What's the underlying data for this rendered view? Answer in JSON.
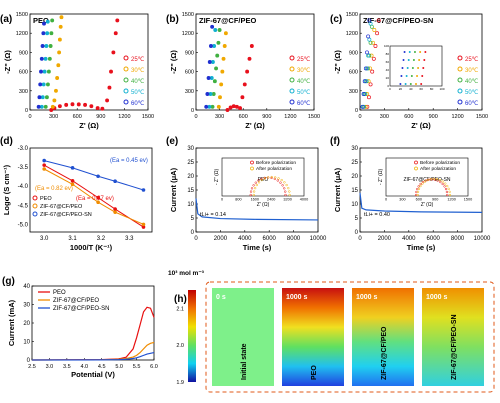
{
  "palette": {
    "c25": "#e8101c",
    "c30": "#f0a800",
    "c40": "#40b040",
    "c50": "#10b0d0",
    "c60": "#2030d0",
    "peo": "#e81010",
    "cf": "#f08c00",
    "sn": "#2050d0",
    "before": "#e81010",
    "after": "#f0b000"
  },
  "chart_data": [
    {
      "panel": "(a)",
      "type": "scatter",
      "title": "PEO",
      "xlabel": "Z' (Ω)",
      "ylabel": "-Z\" (Ω)",
      "xlim": [
        0,
        1500
      ],
      "ylim": [
        0,
        1500
      ],
      "xticks": [
        "0",
        "300",
        "600",
        "900",
        "1200",
        "1500"
      ],
      "yticks": [
        "0",
        "300",
        "600",
        "900",
        "1200",
        "1500"
      ],
      "series": [
        {
          "name": "25℃",
          "color_key": "c25",
          "x": [
            270,
            310,
            380,
            460,
            540,
            620,
            700,
            780,
            860,
            920,
            980,
            1010,
            1030,
            1060,
            1090,
            1110
          ],
          "y": [
            0,
            30,
            60,
            80,
            90,
            88,
            80,
            60,
            30,
            20,
            150,
            350,
            600,
            900,
            1200,
            1400
          ]
        },
        {
          "name": "30℃",
          "color_key": "c30",
          "x": [
            290,
            310,
            330,
            345,
            360,
            370,
            380,
            390,
            400
          ],
          "y": [
            50,
            150,
            300,
            500,
            700,
            900,
            1100,
            1300,
            1450
          ]
        },
        {
          "name": "40℃",
          "color_key": "c40",
          "x": [
            200,
            215,
            228,
            240,
            252,
            262,
            272,
            282
          ],
          "y": [
            50,
            200,
            400,
            600,
            800,
            1000,
            1200,
            1400
          ]
        },
        {
          "name": "50℃",
          "color_key": "c50",
          "x": [
            150,
            162,
            174,
            186,
            198,
            208,
            218,
            226
          ],
          "y": [
            50,
            200,
            400,
            600,
            800,
            1000,
            1200,
            1380
          ]
        },
        {
          "name": "60℃",
          "color_key": "c60",
          "x": [
            110,
            120,
            130,
            140,
            150,
            160,
            170,
            178
          ],
          "y": [
            50,
            200,
            400,
            600,
            800,
            1000,
            1200,
            1350
          ]
        }
      ]
    },
    {
      "panel": "(b)",
      "type": "scatter",
      "title": "ZIF-67@CF/PEO",
      "xlabel": "Z' (Ω)",
      "ylabel": "-Z\" (Ω)",
      "xlim": [
        0,
        1500
      ],
      "ylim": [
        0,
        1500
      ],
      "xticks": [
        "0",
        "300",
        "600",
        "900",
        "1200",
        "1500"
      ],
      "yticks": [
        "0",
        "300",
        "600",
        "900",
        "1200",
        "1500"
      ],
      "series": [
        {
          "name": "25℃",
          "color_key": "c25",
          "x": [
            400,
            440,
            480,
            520,
            560,
            590,
            620,
            650,
            680,
            710
          ],
          "y": [
            0,
            40,
            60,
            50,
            30,
            200,
            400,
            600,
            800,
            1000
          ]
        },
        {
          "name": "30℃",
          "color_key": "c30",
          "x": [
            290,
            305,
            320,
            335,
            350,
            365,
            380
          ],
          "y": [
            50,
            200,
            400,
            600,
            800,
            1000,
            1200
          ]
        },
        {
          "name": "40℃",
          "color_key": "c40",
          "x": [
            210,
            225,
            240,
            255,
            270,
            285,
            300
          ],
          "y": [
            50,
            250,
            450,
            650,
            850,
            1050,
            1250
          ]
        },
        {
          "name": "50℃",
          "color_key": "c50",
          "x": [
            170,
            185,
            200,
            215,
            230,
            245
          ],
          "y": [
            50,
            250,
            500,
            750,
            1000,
            1250
          ]
        },
        {
          "name": "60℃",
          "color_key": "c60",
          "x": [
            130,
            145,
            160,
            175,
            190,
            205
          ],
          "y": [
            50,
            250,
            500,
            750,
            1000,
            1300
          ]
        }
      ]
    },
    {
      "panel": "(c)",
      "type": "scatter",
      "title": "ZIF-67@CF/PEO-SN",
      "xlabel": "Z' (Ω)",
      "ylabel": "-Z\" (Ω)",
      "xlim": [
        0,
        1500
      ],
      "ylim": [
        0,
        1500
      ],
      "xticks": [
        "0",
        "300",
        "600",
        "900",
        "1200",
        "1500"
      ],
      "yticks": [
        "0",
        "300",
        "600",
        "900",
        "1200",
        "1500"
      ],
      "series": [
        {
          "name": "25℃",
          "color_key": "c25",
          "x": [
            90,
            110,
            130,
            150,
            170,
            190,
            210,
            230
          ],
          "y": [
            50,
            200,
            400,
            600,
            800,
            1000,
            1200,
            1400
          ]
        },
        {
          "name": "30℃",
          "color_key": "c30",
          "x": [
            70,
            88,
            106,
            124,
            142,
            160,
            176
          ],
          "y": [
            50,
            250,
            450,
            650,
            850,
            1050,
            1250
          ]
        },
        {
          "name": "40℃",
          "color_key": "c40",
          "x": [
            50,
            66,
            82,
            98,
            114,
            130,
            146
          ],
          "y": [
            50,
            250,
            450,
            650,
            850,
            1050,
            1300
          ]
        },
        {
          "name": "50℃",
          "color_key": "c50",
          "x": [
            40,
            55,
            70,
            85,
            100,
            115,
            130
          ],
          "y": [
            50,
            250,
            450,
            650,
            850,
            1100,
            1350
          ]
        },
        {
          "name": "60℃",
          "color_key": "c60",
          "x": [
            30,
            44,
            58,
            72,
            86,
            100,
            114
          ],
          "y": [
            50,
            250,
            450,
            650,
            900,
            1150,
            1400
          ]
        }
      ],
      "inset": {
        "xlim": [
          0,
          100
        ],
        "ylim": [
          0,
          100
        ],
        "xticks": [
          "0",
          "20",
          "40",
          "60",
          "80",
          "100"
        ],
        "yticks": [
          "0",
          "20",
          "40",
          "60",
          "80",
          "100"
        ],
        "series": [
          {
            "color_key": "c25",
            "x": [
              60,
              62,
              64,
              66,
              68
            ],
            "y": [
              5,
              25,
              45,
              65,
              85
            ]
          },
          {
            "color_key": "c30",
            "x": [
              50,
              52,
              54,
              56,
              58
            ],
            "y": [
              5,
              25,
              45,
              65,
              85
            ]
          },
          {
            "color_key": "c40",
            "x": [
              40,
              42,
              44,
              46,
              48
            ],
            "y": [
              5,
              25,
              45,
              65,
              85
            ]
          },
          {
            "color_key": "c50",
            "x": [
              30,
              32,
              34,
              36,
              38
            ],
            "y": [
              5,
              25,
              45,
              65,
              85
            ]
          },
          {
            "color_key": "c60",
            "x": [
              20,
              22,
              24,
              26,
              28
            ],
            "y": [
              5,
              25,
              45,
              65,
              85
            ]
          }
        ]
      }
    },
    {
      "panel": "(d)",
      "type": "scatter",
      "xlabel": "1000/T (K⁻¹)",
      "ylabel": "Logσ (S cm⁻¹)",
      "xlim": [
        2.95,
        3.38
      ],
      "ylim": [
        -5.2,
        -3.0
      ],
      "xticks": [
        "3.0",
        "3.1",
        "3.2",
        "3.3"
      ],
      "yticks": [
        "-3.0",
        "-3.5",
        "-4.0",
        "-4.5",
        "-5.0"
      ],
      "x": [
        3.0,
        3.1,
        3.19,
        3.25,
        3.35
      ],
      "series": [
        {
          "name": "PEO",
          "color_key": "peo",
          "values": [
            -3.45,
            -3.86,
            -4.3,
            -4.6,
            -5.07
          ]
        },
        {
          "name": "ZIF-67@CF/PEO",
          "color_key": "cf",
          "values": [
            -3.55,
            -3.95,
            -4.42,
            -4.68,
            -5.0
          ]
        },
        {
          "name": "ZIF-67@CF/PEO-SN",
          "color_key": "sn",
          "values": [
            -3.33,
            -3.52,
            -3.74,
            -3.87,
            -4.1
          ]
        }
      ],
      "annotations": [
        {
          "text": "(Ea = 0.45 ev)",
          "color_key": "sn"
        },
        {
          "text": "(Ea = 0.82 ev)",
          "color_key": "cf"
        },
        {
          "text": "(Ea = 0.87 ev)",
          "color_key": "peo"
        }
      ]
    },
    {
      "panel": "(e)",
      "type": "line",
      "xlabel": "Time (s)",
      "ylabel": "Current (μA)",
      "xlim": [
        0,
        10000
      ],
      "ylim": [
        0,
        30
      ],
      "xticks": [
        "0",
        "2000",
        "4000",
        "6000",
        "8000",
        "10000"
      ],
      "yticks": [
        "0",
        "5",
        "10",
        "15",
        "20",
        "25",
        "30"
      ],
      "x": [
        0,
        150,
        500,
        2000,
        5000,
        10000
      ],
      "values": [
        12,
        6.5,
        5.4,
        4.8,
        4.5,
        4.3
      ],
      "annotation": "tLi+ = 0.14",
      "inset": {
        "title": "PEO",
        "xlabel": "Z' (Ω)",
        "ylabel": "- Z\" (Ω)",
        "xlim": [
          0,
          4000
        ],
        "ylim": [
          0,
          2000
        ],
        "xticks": [
          "0",
          "800",
          "1600",
          "2400",
          "3200",
          "4000"
        ],
        "legend": [
          "Before polarization",
          "After polarization"
        ],
        "arc_before": [
          1400,
          3100
        ],
        "arc_after": [
          1550,
          3300
        ]
      }
    },
    {
      "panel": "(f)",
      "type": "line",
      "xlabel": "Time (s)",
      "ylabel": "Current (μA)",
      "xlim": [
        0,
        10000
      ],
      "ylim": [
        0,
        30
      ],
      "xticks": [
        "0",
        "2000",
        "4000",
        "6000",
        "8000",
        "10000"
      ],
      "yticks": [
        "0",
        "5",
        "10",
        "15",
        "20",
        "25",
        "30"
      ],
      "x": [
        0,
        150,
        500,
        2000,
        5000,
        10000
      ],
      "values": [
        14,
        8.5,
        7.9,
        7.5,
        7.2,
        7.0
      ],
      "annotation": "tLi+ = 0.40",
      "inset": {
        "title": "ZIF-67@CF/PEO-SN",
        "xlabel": "Z' (Ω)",
        "ylabel": "- Z\" (Ω)",
        "xlim": [
          0,
          1500
        ],
        "ylim": [
          0,
          1000
        ],
        "xticks": [
          "0",
          "300",
          "600",
          "900",
          "1200",
          "1500"
        ],
        "legend": [
          "Before polarization",
          "After polarization"
        ],
        "arc_before": [
          550,
          1120
        ],
        "arc_after": [
          580,
          1170
        ]
      }
    },
    {
      "panel": "(g)",
      "type": "line",
      "xlabel": "Potential (V)",
      "ylabel": "Current (mA)",
      "xlim": [
        2.5,
        6.0
      ],
      "ylim": [
        0,
        40
      ],
      "xticks": [
        "2.5",
        "3.0",
        "3.5",
        "4.0",
        "4.5",
        "5.0",
        "5.5",
        "6.0"
      ],
      "yticks": [
        "0",
        "10",
        "20",
        "30",
        "40"
      ],
      "x": [
        2.5,
        4.5,
        5.0,
        5.2,
        5.4,
        5.5,
        5.6,
        5.7,
        5.8,
        5.9,
        6.0
      ],
      "series": [
        {
          "name": "PEO",
          "color_key": "peo",
          "values": [
            0,
            0.2,
            0.6,
            1.5,
            6,
            12,
            19,
            26,
            28.5,
            28,
            23
          ]
        },
        {
          "name": "ZIF-67@CF/PEO",
          "color_key": "cf",
          "values": [
            0,
            0.1,
            0.4,
            0.8,
            1.6,
            2.5,
            4,
            6,
            8,
            9,
            9.5
          ]
        },
        {
          "name": "ZIF-67@CF/PEO-SN",
          "color_key": "sn",
          "values": [
            0,
            0.05,
            0.2,
            0.4,
            0.8,
            1.2,
            1.8,
            2.5,
            3.2,
            3.6,
            4
          ]
        }
      ]
    },
    {
      "panel": "(h)",
      "type": "heatmap",
      "colorbar_unit": "10³ mol m⁻³",
      "colorbar_ticks": [
        "2.1",
        "2.0",
        "1.9"
      ],
      "colorbar_range": [
        1.9,
        2.15
      ],
      "tiles": [
        {
          "time": "0 s",
          "label": "Initial state",
          "kind": "uniform"
        },
        {
          "time": "1000 s",
          "label": "PEO",
          "kind": "gradient-strong"
        },
        {
          "time": "1000 s",
          "label": "ZIF-67@CF/PEO",
          "kind": "gradient-mid"
        },
        {
          "time": "1000 s",
          "label": "ZIF-67@CF/PEO-SN",
          "kind": "gradient-weak"
        }
      ]
    }
  ]
}
